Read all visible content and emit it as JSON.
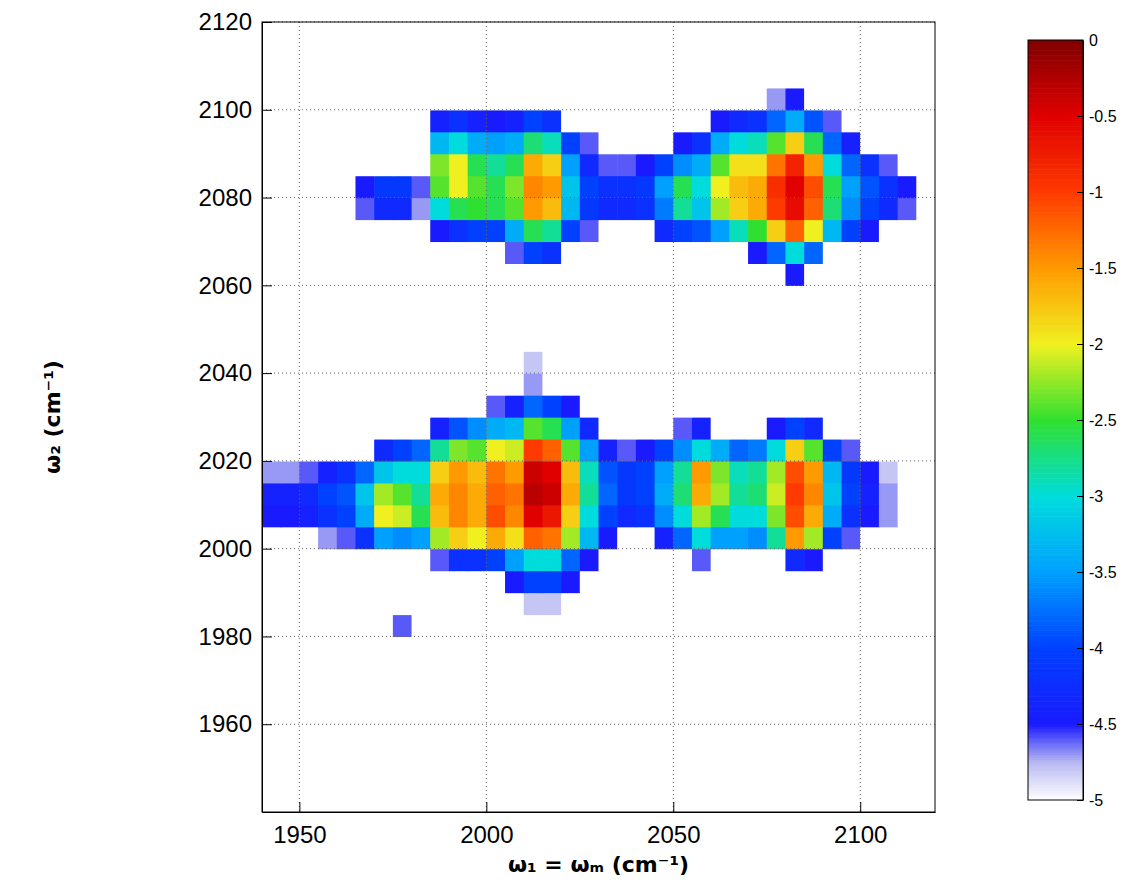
{
  "chart_data": {
    "type": "heatmap",
    "x_label": "ω₁ = ωₘ (cm⁻¹)",
    "y_label": "ω₂ (cm⁻¹)",
    "xlim": [
      1940,
      2120
    ],
    "xticks": [
      1950,
      2000,
      2050,
      2100
    ],
    "ylim": [
      1940,
      2120
    ],
    "yticks": [
      1960,
      1980,
      2000,
      2020,
      2040,
      2060,
      2080,
      2100,
      2120
    ],
    "grid": true,
    "x": [
      1942.5,
      1947.5,
      1952.5,
      1957.5,
      1962.5,
      1967.5,
      1972.5,
      1977.5,
      1982.5,
      1987.5,
      1992.5,
      1997.5,
      2002.5,
      2007.5,
      2012.5,
      2017.5,
      2022.5,
      2027.5,
      2032.5,
      2037.5,
      2042.5,
      2047.5,
      2052.5,
      2057.5,
      2062.5,
      2067.5,
      2072.5,
      2077.5,
      2082.5,
      2087.5,
      2092.5,
      2097.5,
      2102.5,
      2107.5,
      2112.5,
      2117.5
    ],
    "y": [
      1942.5,
      1947.5,
      1952.5,
      1957.5,
      1962.5,
      1967.5,
      1972.5,
      1977.5,
      1982.5,
      1987.5,
      1992.5,
      1997.5,
      2002.5,
      2007.5,
      2012.5,
      2017.5,
      2022.5,
      2027.5,
      2032.5,
      2037.5,
      2042.5,
      2047.5,
      2052.5,
      2057.5,
      2062.5,
      2067.5,
      2072.5,
      2077.5,
      2082.5,
      2087.5,
      2092.5,
      2097.5,
      2102.5,
      2107.5,
      2112.5,
      2117.5
    ],
    "values": [
      [
        -5,
        -5,
        -5,
        -5,
        -5,
        -5,
        -5,
        -5,
        -5,
        -5,
        -5,
        -5,
        -5,
        -5,
        -5,
        -5,
        -5,
        -5,
        -5,
        -5,
        -5,
        -5,
        -5,
        -5,
        -5,
        -5,
        -5,
        -5,
        -5,
        -5,
        -5,
        -5,
        -5,
        -5,
        -5,
        -5
      ],
      [
        -5,
        -5,
        -5,
        -5,
        -5,
        -5,
        -5,
        -5,
        -5,
        -5,
        -5,
        -5,
        -5,
        -5,
        -5,
        -5,
        -5,
        -5,
        -5,
        -5,
        -5,
        -5,
        -5,
        -5,
        -5,
        -5,
        -5,
        -5,
        -5,
        -5,
        -5,
        -5,
        -5,
        -5,
        -5,
        -5
      ],
      [
        -5,
        -5,
        -5,
        -5,
        -5,
        -5,
        -5,
        -5,
        -5,
        -5,
        -5,
        -5,
        -5,
        -5,
        -5,
        -5,
        -5,
        -5,
        -5,
        -5,
        -5,
        -5,
        -5,
        -5,
        -5,
        -5,
        -5,
        -5,
        -5,
        -5,
        -5,
        -5,
        -5,
        -5,
        -5,
        -5
      ],
      [
        -5,
        -5,
        -5,
        -5,
        -5,
        -5,
        -5,
        -5,
        -5,
        -5,
        -5,
        -5,
        -5,
        -5,
        -5,
        -5,
        -5,
        -5,
        -5,
        -5,
        -5,
        -5,
        -5,
        -5,
        -5,
        -5,
        -5,
        -5,
        -5,
        -5,
        -5,
        -5,
        -5,
        -5,
        -5,
        -5
      ],
      [
        -5,
        -5,
        -5,
        -5,
        -5,
        -5,
        -5,
        -5,
        -5,
        -5,
        -5,
        -5,
        -5,
        -5,
        -5,
        -5,
        -5,
        -5,
        -5,
        -5,
        -5,
        -5,
        -5,
        -5,
        -5,
        -5,
        -5,
        -5,
        -5,
        -5,
        -5,
        -5,
        -5,
        -5,
        -5,
        -5
      ],
      [
        -5,
        -5,
        -5,
        -5,
        -5,
        -5,
        -5,
        -5,
        -5,
        -5,
        -5,
        -5,
        -5,
        -5,
        -5,
        -5,
        -5,
        -5,
        -5,
        -5,
        -5,
        -5,
        -5,
        -5,
        -5,
        -5,
        -5,
        -5,
        -5,
        -5,
        -5,
        -5,
        -5,
        -5,
        -5,
        -5
      ],
      [
        -5,
        -5,
        -5,
        -5,
        -5,
        -5,
        -5,
        -5,
        -5,
        -5,
        -5,
        -5,
        -5,
        -5,
        -5,
        -5,
        -5,
        -5,
        -5,
        -5,
        -5,
        -5,
        -5,
        -5,
        -5,
        -5,
        -5,
        -5,
        -5,
        -5,
        -5,
        -5,
        -5,
        -5,
        -5,
        -5
      ],
      [
        -5,
        -5,
        -5,
        -5,
        -5,
        -5,
        -5,
        -5,
        -5,
        -5,
        -5,
        -5,
        -5,
        -5,
        -5,
        -5,
        -5,
        -5,
        -5,
        -5,
        -5,
        -5,
        -5,
        -5,
        -5,
        -5,
        -5,
        -5,
        -5,
        -5,
        -5,
        -5,
        -5,
        -5,
        -5,
        -5
      ],
      [
        -5,
        -5,
        -5,
        -5,
        -5,
        -5,
        -5,
        -4.6,
        -5,
        -5,
        -5,
        -5,
        -5,
        -5,
        -5,
        -5,
        -5,
        -5,
        -5,
        -5,
        -5,
        -5,
        -5,
        -5,
        -5,
        -5,
        -5,
        -5,
        -5,
        -5,
        -5,
        -5,
        -5,
        -5,
        -5,
        -5
      ],
      [
        -5,
        -5,
        -5,
        -5,
        -5,
        -5,
        -5,
        -5,
        -5,
        -5,
        -5,
        -5,
        -5,
        -5,
        -4.8,
        -4.8,
        -5,
        -5,
        -5,
        -5,
        -5,
        -5,
        -5,
        -5,
        -5,
        -5,
        -5,
        -5,
        -5,
        -5,
        -5,
        -5,
        -5,
        -5,
        -5,
        -5
      ],
      [
        -5,
        -5,
        -5,
        -5,
        -5,
        -5,
        -5,
        -5,
        -5,
        -5,
        -5,
        -5,
        -5,
        -4.5,
        -4,
        -4,
        -4.5,
        -5,
        -5,
        -5,
        -5,
        -5,
        -5,
        -5,
        -5,
        -5,
        -5,
        -5,
        -5,
        -5,
        -5,
        -5,
        -5,
        -5,
        -5,
        -5
      ],
      [
        -5,
        -5,
        -5,
        -5,
        -5,
        -5,
        -5,
        -5,
        -5,
        -4.6,
        -4.2,
        -4.2,
        -4,
        -3.5,
        -3,
        -3,
        -3.8,
        -4.5,
        -5,
        -5,
        -5,
        -5,
        -5,
        -4.6,
        -5,
        -5,
        -5,
        -5,
        -4.3,
        -4.5,
        -5,
        -5,
        -5,
        -5,
        -5,
        -5
      ],
      [
        -5,
        -5,
        -5,
        -4.7,
        -4.6,
        -4.2,
        -3.5,
        -3.6,
        -3.5,
        -2.2,
        -1.8,
        -2,
        -1.6,
        -1.9,
        -1.2,
        -1.3,
        -2.2,
        -3.3,
        -4.5,
        -5,
        -5,
        -4.4,
        -3.8,
        -3,
        -3.5,
        -3.5,
        -3.6,
        -2.8,
        -1.5,
        -2.2,
        -4,
        -4.6,
        -5,
        -5,
        -5,
        -5
      ],
      [
        -4.5,
        -4.5,
        -4.4,
        -4.2,
        -4,
        -3.4,
        -2,
        -2.1,
        -2.6,
        -1.7,
        -1.4,
        -1.6,
        -1.1,
        -1.4,
        -0.5,
        -0.7,
        -1.8,
        -3,
        -4,
        -4.3,
        -4.2,
        -3.6,
        -3,
        -2.2,
        -2.6,
        -3,
        -3,
        -2.3,
        -1.1,
        -1.6,
        -3.4,
        -4.2,
        -4.5,
        -4.7,
        -5,
        -5
      ],
      [
        -4.4,
        -4.4,
        -4.3,
        -4,
        -3.9,
        -3.2,
        -2.2,
        -2.4,
        -2.8,
        -1.6,
        -1.4,
        -1.6,
        -1.2,
        -1.3,
        -0.3,
        -0.4,
        -1.6,
        -2.8,
        -3.8,
        -4.1,
        -4,
        -3.4,
        -2.7,
        -1.6,
        -2.2,
        -2.8,
        -2.7,
        -2.1,
        -1,
        -1.4,
        -3.2,
        -4,
        -4.4,
        -4.7,
        -5,
        -5
      ],
      [
        -4.7,
        -4.7,
        -4.6,
        -4.4,
        -4.2,
        -3.8,
        -3.2,
        -3,
        -3,
        -1.8,
        -1.5,
        -1.7,
        -1.3,
        -1.5,
        -0.4,
        -0.5,
        -1.7,
        -2.9,
        -3.9,
        -4.1,
        -4,
        -3.5,
        -2.8,
        -1.5,
        -2.3,
        -2.9,
        -2.8,
        -2.2,
        -1.1,
        -1.5,
        -3.3,
        -4.1,
        -4.5,
        -4.8,
        -5,
        -5
      ],
      [
        -5,
        -5,
        -5,
        -5,
        -5,
        -5,
        -4.3,
        -4,
        -3.8,
        -2.8,
        -2.3,
        -2.4,
        -2,
        -2.1,
        -1,
        -1.2,
        -2.4,
        -3.5,
        -4.4,
        -4.6,
        -4.5,
        -4,
        -3.6,
        -3,
        -3.4,
        -3.8,
        -3.7,
        -3,
        -1.8,
        -2.4,
        -4,
        -4.6,
        -5,
        -5,
        -5,
        -5
      ],
      [
        -5,
        -5,
        -5,
        -5,
        -5,
        -5,
        -5,
        -5,
        -5,
        -4.4,
        -3.9,
        -3.6,
        -3.4,
        -3.3,
        -2.4,
        -2.6,
        -3.5,
        -4.3,
        -5,
        -5,
        -5,
        -5,
        -4.6,
        -4.4,
        -5,
        -5,
        -5,
        -4.5,
        -4,
        -4.3,
        -5,
        -5,
        -5,
        -5,
        -5,
        -5
      ],
      [
        -5,
        -5,
        -5,
        -5,
        -5,
        -5,
        -5,
        -5,
        -5,
        -5,
        -5,
        -5,
        -4.6,
        -4.4,
        -3.8,
        -4,
        -4.5,
        -5,
        -5,
        -5,
        -5,
        -5,
        -5,
        -5,
        -5,
        -5,
        -5,
        -5,
        -5,
        -5,
        -5,
        -5,
        -5,
        -5,
        -5,
        -5
      ],
      [
        -5,
        -5,
        -5,
        -5,
        -5,
        -5,
        -5,
        -5,
        -5,
        -5,
        -5,
        -5,
        -5,
        -5,
        -4.7,
        -5,
        -5,
        -5,
        -5,
        -5,
        -5,
        -5,
        -5,
        -5,
        -5,
        -5,
        -5,
        -5,
        -5,
        -5,
        -5,
        -5,
        -5,
        -5,
        -5,
        -5
      ],
      [
        -5,
        -5,
        -5,
        -5,
        -5,
        -5,
        -5,
        -5,
        -5,
        -5,
        -5,
        -5,
        -5,
        -5,
        -4.8,
        -5,
        -5,
        -5,
        -5,
        -5,
        -5,
        -5,
        -5,
        -5,
        -5,
        -5,
        -5,
        -5,
        -5,
        -5,
        -5,
        -5,
        -5,
        -5,
        -5,
        -5
      ],
      [
        -5,
        -5,
        -5,
        -5,
        -5,
        -5,
        -5,
        -5,
        -5,
        -5,
        -5,
        -5,
        -5,
        -5,
        -5,
        -5,
        -5,
        -5,
        -5,
        -5,
        -5,
        -5,
        -5,
        -5,
        -5,
        -5,
        -5,
        -5,
        -5,
        -5,
        -5,
        -5,
        -5,
        -5,
        -5,
        -5
      ],
      [
        -5,
        -5,
        -5,
        -5,
        -5,
        -5,
        -5,
        -5,
        -5,
        -5,
        -5,
        -5,
        -5,
        -5,
        -5,
        -5,
        -5,
        -5,
        -5,
        -5,
        -5,
        -5,
        -5,
        -5,
        -5,
        -5,
        -5,
        -5,
        -5,
        -5,
        -5,
        -5,
        -5,
        -5,
        -5,
        -5
      ],
      [
        -5,
        -5,
        -5,
        -5,
        -5,
        -5,
        -5,
        -5,
        -5,
        -5,
        -5,
        -5,
        -5,
        -5,
        -5,
        -5,
        -5,
        -5,
        -5,
        -5,
        -5,
        -5,
        -5,
        -5,
        -5,
        -5,
        -5,
        -5,
        -5,
        -5,
        -5,
        -5,
        -5,
        -5,
        -5,
        -5
      ],
      [
        -5,
        -5,
        -5,
        -5,
        -5,
        -5,
        -5,
        -5,
        -5,
        -5,
        -5,
        -5,
        -5,
        -5,
        -5,
        -5,
        -5,
        -5,
        -5,
        -5,
        -5,
        -5,
        -5,
        -5,
        -5,
        -5,
        -5,
        -5,
        -4.5,
        -5,
        -5,
        -5,
        -5,
        -5,
        -5,
        -5
      ],
      [
        -5,
        -5,
        -5,
        -5,
        -5,
        -5,
        -5,
        -5,
        -5,
        -5,
        -5,
        -5,
        -5,
        -4.6,
        -4,
        -4.2,
        -5,
        -5,
        -5,
        -5,
        -5,
        -5,
        -5,
        -5,
        -5,
        -5,
        -4.5,
        -3.8,
        -3,
        -3.8,
        -5,
        -5,
        -5,
        -5,
        -5,
        -5
      ],
      [
        -5,
        -5,
        -5,
        -5,
        -5,
        -5,
        -5,
        -5,
        -5,
        -4.5,
        -4.2,
        -4,
        -4,
        -3.4,
        -2.6,
        -2.8,
        -4,
        -4.6,
        -5,
        -5,
        -5,
        -4.3,
        -4,
        -3.9,
        -3.5,
        -2.9,
        -2.5,
        -1.8,
        -1.2,
        -2,
        -3.3,
        -4,
        -4.5,
        -5,
        -5,
        -5
      ],
      [
        -5,
        -5,
        -5,
        -5,
        -5,
        -4.6,
        -4.3,
        -4.3,
        -4.7,
        -3,
        -2.6,
        -2.5,
        -2.6,
        -2.4,
        -1.5,
        -1.7,
        -3.3,
        -4.1,
        -4.3,
        -4.3,
        -4.2,
        -3.7,
        -2.8,
        -3.2,
        -2.2,
        -1.8,
        -1.6,
        -1,
        -0.6,
        -1.2,
        -2.7,
        -3.6,
        -4,
        -4.3,
        -4.6,
        -5
      ],
      [
        -5,
        -5,
        -5,
        -5,
        -5,
        -4.5,
        -4.1,
        -4.1,
        -4.6,
        -2.4,
        -2,
        -2.4,
        -2.6,
        -2.3,
        -1.4,
        -1.5,
        -3.2,
        -4,
        -4.2,
        -4.2,
        -4.1,
        -3.5,
        -2.6,
        -3,
        -2,
        -1.7,
        -1.6,
        -0.9,
        -0.5,
        -1.1,
        -2.6,
        -3.5,
        -3.9,
        -4.2,
        -4.5,
        -5
      ],
      [
        -5,
        -5,
        -5,
        -5,
        -5,
        -5,
        -5,
        -5,
        -5,
        -2.3,
        -2,
        -2.6,
        -2.8,
        -2.6,
        -1.6,
        -1.8,
        -3.5,
        -4.3,
        -4.6,
        -4.6,
        -4.5,
        -4,
        -3.6,
        -3.4,
        -2.4,
        -1.9,
        -1.9,
        -1.3,
        -0.8,
        -1.5,
        -3,
        -3.8,
        -4.2,
        -4.6,
        -5,
        -5
      ],
      [
        -5,
        -5,
        -5,
        -5,
        -5,
        -5,
        -5,
        -5,
        -5,
        -3.3,
        -3,
        -3.4,
        -3.5,
        -3.4,
        -2.7,
        -2.9,
        -4,
        -4.6,
        -5,
        -5,
        -5,
        -5,
        -4.5,
        -4.2,
        -3.4,
        -3,
        -2.9,
        -2.4,
        -1.8,
        -2.6,
        -3.8,
        -4.4,
        -5,
        -5,
        -5,
        -5
      ],
      [
        -5,
        -5,
        -5,
        -5,
        -5,
        -5,
        -5,
        -5,
        -5,
        -4.4,
        -4.2,
        -4.4,
        -4.5,
        -4.4,
        -4,
        -4.2,
        -5,
        -5,
        -5,
        -5,
        -5,
        -5,
        -5,
        -5,
        -4.5,
        -4.3,
        -4.2,
        -3.8,
        -3.4,
        -3.9,
        -4.6,
        -5,
        -5,
        -5,
        -5,
        -5
      ],
      [
        -5,
        -5,
        -5,
        -5,
        -5,
        -5,
        -5,
        -5,
        -5,
        -5,
        -5,
        -5,
        -5,
        -5,
        -5,
        -5,
        -5,
        -5,
        -5,
        -5,
        -5,
        -5,
        -5,
        -5,
        -5,
        -5,
        -5,
        -4.7,
        -4.5,
        -5,
        -5,
        -5,
        -5,
        -5,
        -5,
        -5
      ],
      [
        -5,
        -5,
        -5,
        -5,
        -5,
        -5,
        -5,
        -5,
        -5,
        -5,
        -5,
        -5,
        -5,
        -5,
        -5,
        -5,
        -5,
        -5,
        -5,
        -5,
        -5,
        -5,
        -5,
        -5,
        -5,
        -5,
        -5,
        -5,
        -5,
        -5,
        -5,
        -5,
        -5,
        -5,
        -5,
        -5
      ],
      [
        -5,
        -5,
        -5,
        -5,
        -5,
        -5,
        -5,
        -5,
        -5,
        -5,
        -5,
        -5,
        -5,
        -5,
        -5,
        -5,
        -5,
        -5,
        -5,
        -5,
        -5,
        -5,
        -5,
        -5,
        -5,
        -5,
        -5,
        -5,
        -5,
        -5,
        -5,
        -5,
        -5,
        -5,
        -5,
        -5
      ],
      [
        -5,
        -5,
        -5,
        -5,
        -5,
        -5,
        -5,
        -5,
        -5,
        -5,
        -5,
        -5,
        -5,
        -5,
        -5,
        -5,
        -5,
        -5,
        -5,
        -5,
        -5,
        -5,
        -5,
        -5,
        -5,
        -5,
        -5,
        -5,
        -5,
        -5,
        -5,
        -5,
        -5,
        -5,
        -5,
        -5
      ]
    ],
    "colorbar": {
      "range": [
        -5,
        0
      ],
      "ticks": [
        0,
        -0.5,
        -1,
        -1.5,
        -2,
        -2.5,
        -3,
        -3.5,
        -4,
        -4.5,
        -5
      ]
    }
  }
}
